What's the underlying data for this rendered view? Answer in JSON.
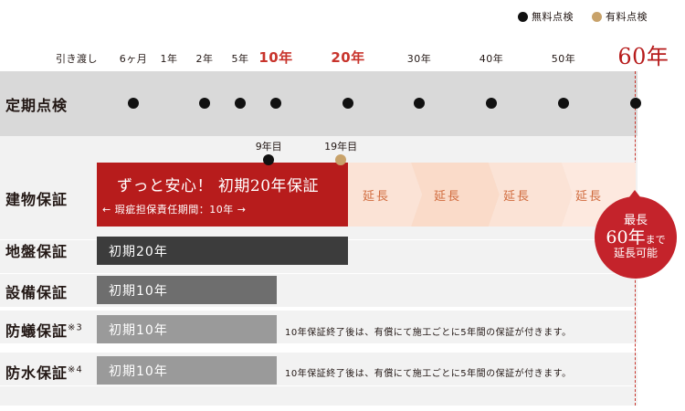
{
  "legend": {
    "free_label": "無料点検",
    "paid_label": "有料点検",
    "free_color": "#111111",
    "paid_color": "#c8a26a"
  },
  "timeline": {
    "ticks": [
      {
        "label": "引き渡し",
        "year": 0,
        "style": "normal"
      },
      {
        "label": "6ヶ月",
        "year": 0.5,
        "style": "normal"
      },
      {
        "label": "1年",
        "year": 1,
        "style": "normal"
      },
      {
        "label": "2年",
        "year": 2,
        "style": "normal"
      },
      {
        "label": "5年",
        "year": 5,
        "style": "normal"
      },
      {
        "label": "10年",
        "year": 10,
        "style": "highlight"
      },
      {
        "label": "20年",
        "year": 20,
        "style": "highlight"
      },
      {
        "label": "30年",
        "year": 30,
        "style": "normal"
      },
      {
        "label": "40年",
        "year": 40,
        "style": "normal"
      },
      {
        "label": "50年",
        "year": 50,
        "style": "normal"
      },
      {
        "label": "60年",
        "year": 60,
        "style": "big"
      }
    ]
  },
  "rows": {
    "inspection": {
      "label": "定期点検",
      "points": [
        0.5,
        2,
        5,
        10,
        20,
        30,
        40,
        50,
        60
      ]
    },
    "building": {
      "label": "建物保証",
      "markers": [
        {
          "label": "9年目",
          "year": 9,
          "type": "free"
        },
        {
          "label": "19年目",
          "year": 19,
          "type": "paid"
        }
      ],
      "main_title": "ずっと安心！ 初期20年保証",
      "sub_text": "← 瑕疵担保責任期間：10年 →",
      "extensions": [
        "延長",
        "延長",
        "延長",
        "延長"
      ],
      "colors": {
        "main": "#b71c1c",
        "extension": "#fbe3d6",
        "extension_text": "#d06a3c"
      }
    },
    "ground": {
      "label": "地盤保証",
      "bar_text": "初期20年",
      "years": 20,
      "color": "#3c3c3c"
    },
    "equipment": {
      "label": "設備保証",
      "bar_text": "初期10年",
      "years": 10,
      "color": "#6e6e6e"
    },
    "termite": {
      "label": "防蟻保証",
      "note_mark": "※3",
      "bar_text": "初期10年",
      "years": 10,
      "color": "#9a9a9a",
      "note": "10年保証終了後は、有償にて施工ごとに5年間の保証が付きます。"
    },
    "waterproof": {
      "label": "防水保証",
      "note_mark": "※4",
      "bar_text": "初期10年",
      "years": 10,
      "color": "#9a9a9a",
      "note": "10年保証終了後は、有償にて施工ごとに5年間の保証が付きます。"
    }
  },
  "badge": {
    "line1": "最長",
    "line2": "60年",
    "line2_suffix": "まで",
    "line3": "延長可能"
  }
}
